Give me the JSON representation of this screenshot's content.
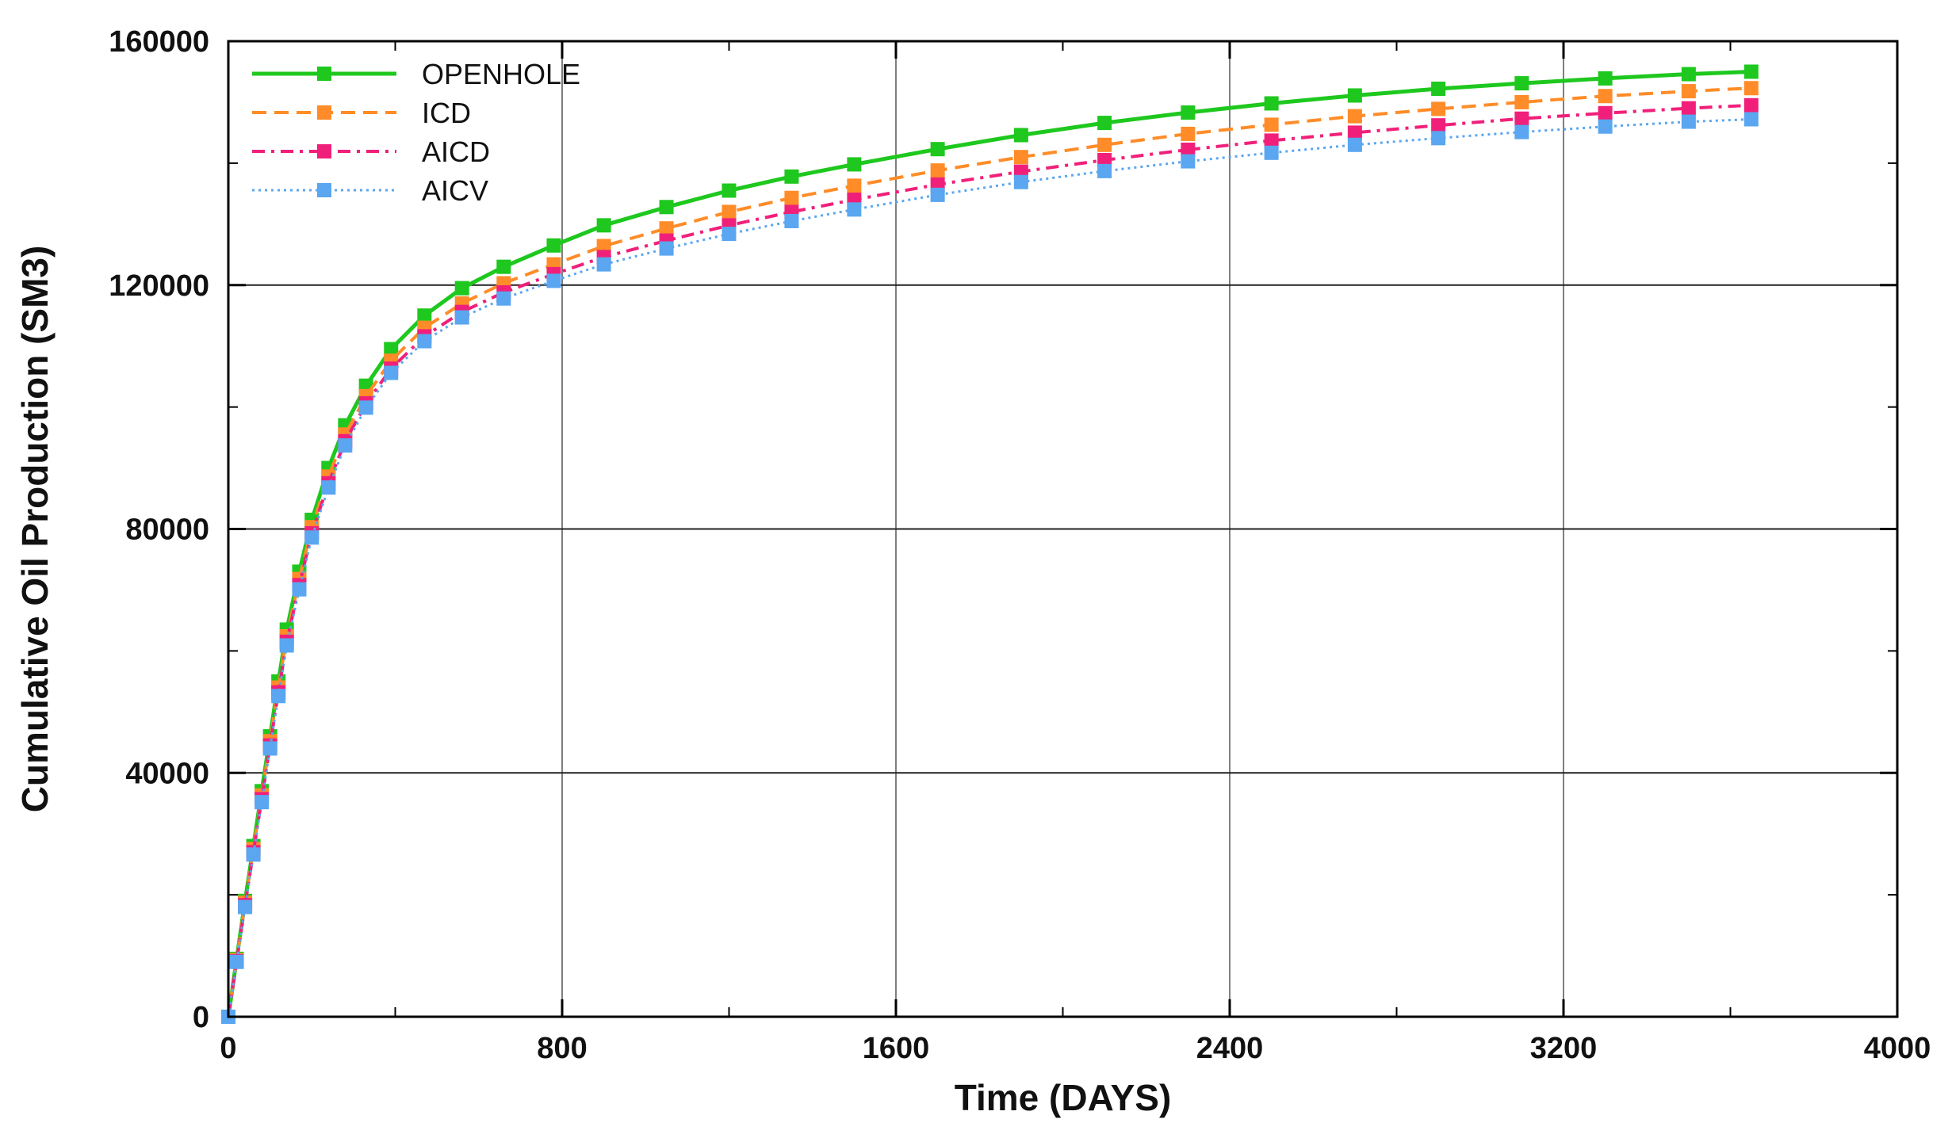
{
  "chart_data": {
    "type": "line",
    "title": "",
    "xlabel": "Time (DAYS)",
    "ylabel": "Cumulative Oil Production (SM3)",
    "xlim": [
      0,
      4000
    ],
    "ylim": [
      0,
      160000
    ],
    "xticks": [
      0,
      800,
      1600,
      2400,
      3200,
      4000
    ],
    "yticks": [
      0,
      40000,
      80000,
      120000,
      160000
    ],
    "grid": true,
    "legend_position": "top-left",
    "x": [
      0,
      20,
      40,
      60,
      80,
      100,
      120,
      140,
      170,
      200,
      240,
      280,
      330,
      390,
      470,
      560,
      660,
      780,
      900,
      1050,
      1200,
      1350,
      1500,
      1700,
      1900,
      2100,
      2300,
      2500,
      2700,
      2900,
      3100,
      3300,
      3500,
      3650
    ],
    "series": [
      {
        "name": "OPENHOLE",
        "color": "#1ec81e",
        "dash": "solid",
        "values": [
          0,
          9500,
          19000,
          28000,
          37000,
          46000,
          55000,
          63500,
          73000,
          81500,
          90000,
          97000,
          103500,
          109500,
          115000,
          119500,
          123000,
          126500,
          129800,
          132800,
          135500,
          137800,
          139800,
          142300,
          144600,
          146600,
          148300,
          149800,
          151100,
          152200,
          153100,
          153900,
          154600,
          155000
        ]
      },
      {
        "name": "ICD",
        "color": "#ff8c28",
        "dash": "dashed",
        "values": [
          0,
          9300,
          18700,
          27500,
          36300,
          45200,
          54000,
          62400,
          71800,
          80300,
          88600,
          95500,
          101800,
          107600,
          113000,
          117000,
          120300,
          123400,
          126400,
          129300,
          132000,
          134300,
          136300,
          138800,
          141000,
          143000,
          144800,
          146300,
          147700,
          148900,
          150000,
          151000,
          151800,
          152300
        ]
      },
      {
        "name": "AICD",
        "color": "#f0207a",
        "dash": "dashdot",
        "values": [
          0,
          9100,
          18300,
          27000,
          35700,
          44500,
          53200,
          61500,
          70800,
          79300,
          87500,
          94400,
          100600,
          106300,
          111600,
          115600,
          118800,
          121800,
          124600,
          127300,
          129800,
          132000,
          134000,
          136500,
          138600,
          140500,
          142200,
          143700,
          145000,
          146200,
          147300,
          148200,
          149000,
          149500
        ]
      },
      {
        "name": "AICV",
        "color": "#5aa6f0",
        "dash": "dotted",
        "values": [
          0,
          9000,
          18000,
          26600,
          35200,
          44000,
          52600,
          60900,
          70100,
          78600,
          86800,
          93700,
          99900,
          105600,
          110800,
          114700,
          117800,
          120700,
          123400,
          126000,
          128400,
          130500,
          132400,
          134800,
          136900,
          138700,
          140300,
          141700,
          143000,
          144100,
          145100,
          146000,
          146800,
          147200
        ]
      }
    ]
  }
}
